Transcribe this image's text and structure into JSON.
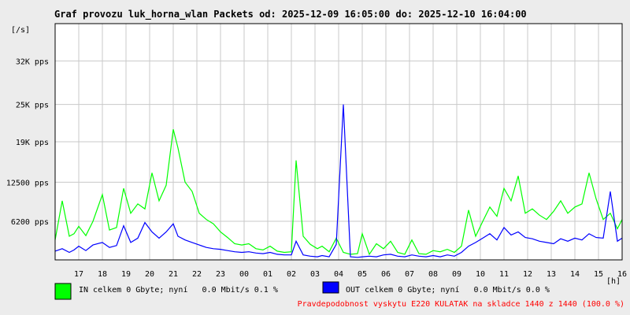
{
  "title": "Graf provozu luk_horna_wlan Packets od: 2025-12-09 16:05:00 do: 2025-12-10 16:04:00",
  "colors": {
    "background": "#ececec",
    "plot_bg": "#ffffff",
    "grid": "#c8c8c8",
    "in_series": "#00ff00",
    "out_series": "#0000ff",
    "footer_text": "#ff0000"
  },
  "chart_data": {
    "type": "area",
    "title": "Graf provozu luk_horna_wlan Packets od: 2025-12-09 16:05:00 do: 2025-12-10 16:04:00",
    "ylabel": "[/s]",
    "xlabel": "[h]",
    "ylim": [
      0,
      38000
    ],
    "grid": true,
    "legend_placement": "bottom-left",
    "y_ticks": [
      {
        "value": 6200,
        "label": "6200 pps"
      },
      {
        "value": 12500,
        "label": "12500 pps"
      },
      {
        "value": 19000,
        "label": "19K pps"
      },
      {
        "value": 25000,
        "label": "25K pps"
      },
      {
        "value": 32000,
        "label": "32K pps"
      }
    ],
    "x_range": [
      16.0,
      40.0
    ],
    "x_ticks": [
      {
        "value": 17,
        "label": "17"
      },
      {
        "value": 18,
        "label": "18"
      },
      {
        "value": 19,
        "label": "19"
      },
      {
        "value": 20,
        "label": "20"
      },
      {
        "value": 21,
        "label": "21"
      },
      {
        "value": 22,
        "label": "22"
      },
      {
        "value": 23,
        "label": "23"
      },
      {
        "value": 24,
        "label": "00"
      },
      {
        "value": 25,
        "label": "01"
      },
      {
        "value": 26,
        "label": "02"
      },
      {
        "value": 27,
        "label": "03"
      },
      {
        "value": 28,
        "label": "04"
      },
      {
        "value": 29,
        "label": "05"
      },
      {
        "value": 30,
        "label": "06"
      },
      {
        "value": 31,
        "label": "07"
      },
      {
        "value": 32,
        "label": "08"
      },
      {
        "value": 33,
        "label": "09"
      },
      {
        "value": 34,
        "label": "10"
      },
      {
        "value": 35,
        "label": "11"
      },
      {
        "value": 36,
        "label": "12"
      },
      {
        "value": 37,
        "label": "13"
      },
      {
        "value": 38,
        "label": "14"
      },
      {
        "value": 39,
        "label": "15"
      },
      {
        "value": 40,
        "label": "16"
      }
    ],
    "series": [
      {
        "name": "IN celkem 0 Gbyte; nyní   0.0 Mbit/s 0.1 %",
        "x": [
          16.0,
          16.3,
          16.6,
          16.8,
          17.0,
          17.3,
          17.6,
          18.0,
          18.3,
          18.6,
          18.9,
          19.2,
          19.5,
          19.8,
          20.1,
          20.4,
          20.7,
          21.0,
          21.2,
          21.5,
          21.8,
          22.1,
          22.4,
          22.7,
          23.0,
          23.3,
          23.6,
          23.9,
          24.2,
          24.5,
          24.8,
          25.1,
          25.4,
          25.7,
          26.0,
          26.2,
          26.5,
          26.8,
          27.1,
          27.3,
          27.6,
          27.9,
          28.2,
          28.5,
          28.8,
          29.0,
          29.3,
          29.6,
          29.9,
          30.2,
          30.5,
          30.8,
          31.1,
          31.4,
          31.7,
          32.0,
          32.3,
          32.6,
          32.9,
          33.2,
          33.5,
          33.8,
          34.1,
          34.4,
          34.7,
          35.0,
          35.3,
          35.6,
          35.9,
          36.2,
          36.5,
          36.8,
          37.1,
          37.4,
          37.7,
          38.0,
          38.3,
          38.6,
          38.9,
          39.2,
          39.5,
          39.8,
          40.0
        ],
        "y": [
          3200,
          9500,
          3800,
          4200,
          5400,
          3900,
          6200,
          10500,
          4800,
          5200,
          11500,
          7500,
          9000,
          8200,
          14000,
          9500,
          12000,
          21000,
          18000,
          12500,
          11000,
          7500,
          6500,
          5800,
          4500,
          3600,
          2600,
          2400,
          2600,
          1800,
          1600,
          2200,
          1400,
          1200,
          1300,
          16000,
          3800,
          2500,
          1800,
          2200,
          1300,
          3500,
          1200,
          900,
          1000,
          4200,
          900,
          2600,
          1800,
          3000,
          1200,
          900,
          3200,
          1000,
          900,
          1500,
          1300,
          1700,
          1200,
          2200,
          8000,
          3800,
          6200,
          8500,
          7000,
          11500,
          9500,
          13500,
          7500,
          8200,
          7200,
          6500,
          7800,
          9500,
          7500,
          8500,
          9000,
          14000,
          9800,
          6500,
          7500,
          5000,
          6500
        ]
      },
      {
        "name": "OUT celkem 0 Gbyte; nyní   0.0 Mbit/s 0.0 %",
        "x": [
          16.0,
          16.3,
          16.6,
          16.8,
          17.0,
          17.3,
          17.6,
          18.0,
          18.3,
          18.6,
          18.9,
          19.2,
          19.5,
          19.8,
          20.1,
          20.4,
          20.7,
          21.0,
          21.2,
          21.5,
          21.8,
          22.1,
          22.4,
          22.7,
          23.0,
          23.3,
          23.6,
          23.9,
          24.2,
          24.5,
          24.8,
          25.1,
          25.4,
          25.7,
          26.0,
          26.2,
          26.5,
          26.8,
          27.1,
          27.3,
          27.6,
          27.9,
          28.2,
          28.5,
          28.8,
          29.0,
          29.3,
          29.6,
          29.9,
          30.2,
          30.5,
          30.8,
          31.1,
          31.4,
          31.7,
          32.0,
          32.3,
          32.6,
          32.9,
          33.2,
          33.5,
          33.8,
          34.1,
          34.4,
          34.7,
          35.0,
          35.3,
          35.6,
          35.9,
          36.2,
          36.5,
          36.8,
          37.1,
          37.4,
          37.7,
          38.0,
          38.3,
          38.6,
          38.9,
          39.2,
          39.5,
          39.8,
          40.0
        ],
        "y": [
          1400,
          1800,
          1200,
          1600,
          2200,
          1500,
          2400,
          2800,
          2000,
          2300,
          5500,
          2800,
          3500,
          6000,
          4500,
          3500,
          4500,
          5800,
          3800,
          3200,
          2800,
          2400,
          2000,
          1800,
          1700,
          1500,
          1300,
          1200,
          1300,
          1100,
          1000,
          1200,
          900,
          800,
          800,
          3000,
          800,
          600,
          500,
          700,
          500,
          2500,
          25000,
          500,
          400,
          500,
          600,
          500,
          800,
          900,
          600,
          500,
          800,
          600,
          500,
          700,
          500,
          800,
          600,
          1200,
          2200,
          2800,
          3500,
          4200,
          3200,
          5200,
          4000,
          4500,
          3600,
          3400,
          3000,
          2800,
          2600,
          3400,
          3000,
          3500,
          3200,
          4200,
          3600,
          3500,
          11000,
          3000,
          3500
        ]
      }
    ]
  },
  "legend": {
    "in_label": "IN celkem 0 Gbyte; nyní   0.0 Mbit/s 0.1 %",
    "out_label": "OUT celkem 0 Gbyte; nyní   0.0 Mbit/s 0.0 %"
  },
  "footer": "Pravdepodobnost vyskytu E220 KULATAK na skladce 1440 z 1440 (100.0 %)"
}
